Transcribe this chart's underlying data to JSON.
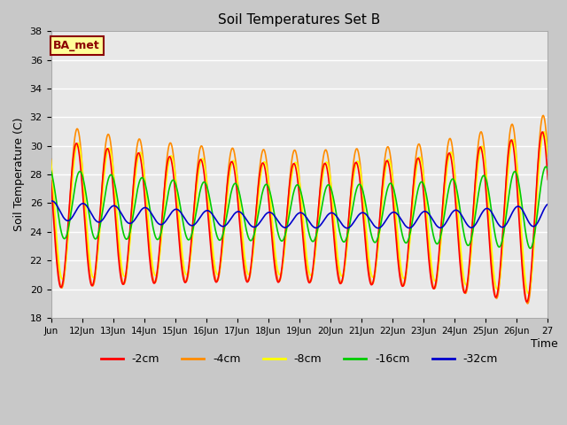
{
  "title": "Soil Temperatures Set B",
  "xlabel": "Time",
  "ylabel": "Soil Temperature (C)",
  "ylim": [
    18,
    38
  ],
  "xlim": [
    0,
    16
  ],
  "fig_bg_color": "#c8c8c8",
  "plot_bg_color": "#e8e8e8",
  "grid_color": "#ffffff",
  "annotation_text": "BA_met",
  "annotation_bg": "#ffff99",
  "annotation_border": "#8b0000",
  "annotation_text_color": "#8b0000",
  "series": {
    "-2cm": {
      "color": "#ff0000",
      "lw": 1.2
    },
    "-4cm": {
      "color": "#ff8c00",
      "lw": 1.2
    },
    "-8cm": {
      "color": "#ffff00",
      "lw": 1.2
    },
    "-16cm": {
      "color": "#00cc00",
      "lw": 1.2
    },
    "-32cm": {
      "color": "#0000cc",
      "lw": 1.2
    }
  },
  "xtick_labels": [
    "Jun",
    "12Jun",
    "13Jun",
    "14Jun",
    "15Jun",
    "16Jun",
    "17Jun",
    "18Jun",
    "19Jun",
    "20Jun",
    "21Jun",
    "22Jun",
    "23Jun",
    "24Jun",
    "25Jun",
    "26Jun",
    "27"
  ],
  "xtick_positions": [
    0,
    1,
    2,
    3,
    4,
    5,
    6,
    7,
    8,
    9,
    10,
    11,
    12,
    13,
    14,
    15,
    16
  ],
  "ytick_positions": [
    18,
    20,
    22,
    24,
    26,
    28,
    30,
    32,
    34,
    36,
    38
  ]
}
